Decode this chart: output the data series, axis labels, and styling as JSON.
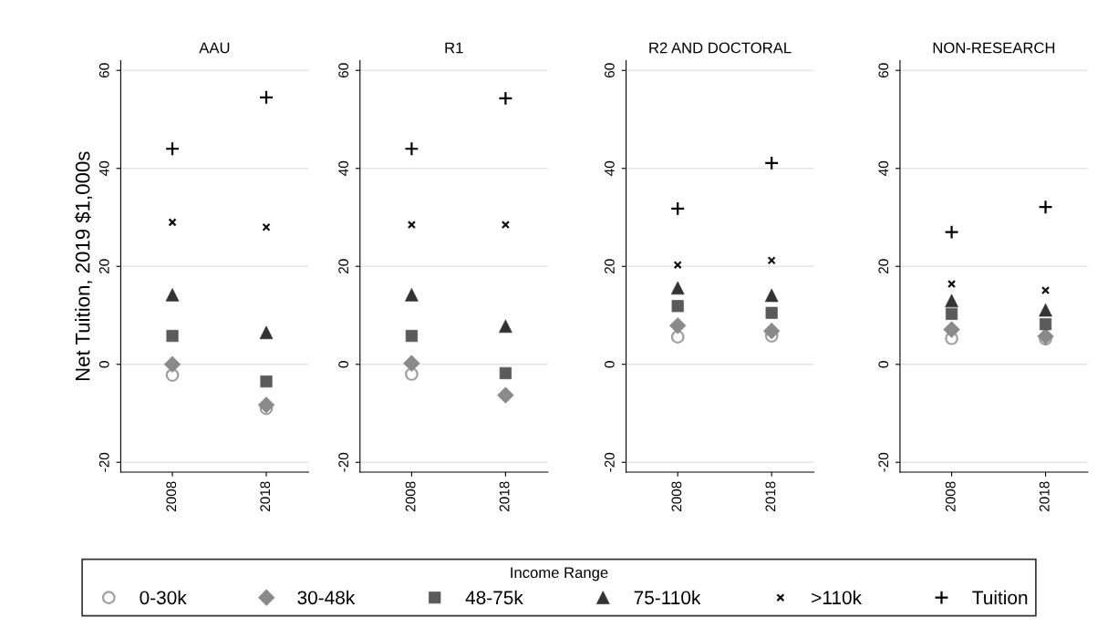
{
  "chart_data": [
    {
      "type": "scatter",
      "title": "AAU",
      "ylabel": "Net Tuition, 2019 $1,000s",
      "categories": [
        "2008",
        "2018"
      ],
      "ylim": [
        -22,
        62
      ],
      "yticks": [
        -20,
        0,
        20,
        40,
        60
      ],
      "grid": "y",
      "legend": "bottom",
      "legend_title": "Income Range",
      "series": [
        {
          "name": "0-30k",
          "color": "#a0a0a0",
          "marker": "circle",
          "values": [
            -2.2,
            -9
          ]
        },
        {
          "name": "30-48k",
          "color": "#8a8a8a",
          "marker": "diamond",
          "values": [
            0,
            -8.3
          ]
        },
        {
          "name": "48-75k",
          "color": "#5a5a5a",
          "marker": "square",
          "values": [
            5.8,
            -3.5
          ]
        },
        {
          "name": "75-110k",
          "color": "#333333",
          "marker": "triangle",
          "values": [
            14.2,
            6.5
          ]
        },
        {
          "name": ">110k",
          "color": "#111111",
          "marker": "x",
          "values": [
            29,
            28
          ]
        },
        {
          "name": "Tuition",
          "color": "#000000",
          "marker": "cross",
          "values": [
            44,
            54.5
          ]
        }
      ]
    },
    {
      "type": "scatter",
      "title": "R1",
      "categories": [
        "2008",
        "2018"
      ],
      "ylim": [
        -22,
        62
      ],
      "yticks": [
        -20,
        0,
        20,
        40,
        60
      ],
      "grid": "y",
      "series": [
        {
          "color": "#a0a0a0",
          "marker": "circle",
          "values": [
            -2,
            null
          ]
        },
        {
          "color": "#8a8a8a",
          "marker": "diamond",
          "values": [
            0.2,
            -6.3
          ]
        },
        {
          "color": "#5a5a5a",
          "marker": "square",
          "values": [
            5.8,
            -1.8
          ]
        },
        {
          "color": "#333333",
          "marker": "triangle",
          "values": [
            14.2,
            7.8
          ]
        },
        {
          "color": "#111111",
          "marker": "x",
          "values": [
            28.5,
            28.5
          ]
        },
        {
          "color": "#000000",
          "marker": "cross",
          "values": [
            44,
            54.3
          ]
        }
      ]
    },
    {
      "type": "scatter",
      "title": "R2 AND DOCTORAL",
      "categories": [
        "2008",
        "2018"
      ],
      "ylim": [
        -22,
        62
      ],
      "yticks": [
        -20,
        0,
        20,
        40,
        60
      ],
      "grid": "y",
      "series": [
        {
          "color": "#a0a0a0",
          "marker": "circle",
          "values": [
            5.6,
            5.8
          ]
        },
        {
          "color": "#8a8a8a",
          "marker": "diamond",
          "values": [
            7.9,
            6.8
          ]
        },
        {
          "color": "#5a5a5a",
          "marker": "square",
          "values": [
            11.9,
            10.5
          ]
        },
        {
          "color": "#333333",
          "marker": "triangle",
          "values": [
            15.6,
            14.1
          ]
        },
        {
          "color": "#111111",
          "marker": "x",
          "values": [
            20.3,
            21.2
          ]
        },
        {
          "color": "#000000",
          "marker": "cross",
          "values": [
            31.8,
            41.1
          ]
        }
      ]
    },
    {
      "type": "scatter",
      "title": "NON-RESEARCH",
      "categories": [
        "2008",
        "2018"
      ],
      "ylim": [
        -22,
        62
      ],
      "yticks": [
        -20,
        0,
        20,
        40,
        60
      ],
      "grid": "y",
      "series": [
        {
          "color": "#a0a0a0",
          "marker": "circle",
          "values": [
            5.3,
            5.2
          ]
        },
        {
          "color": "#8a8a8a",
          "marker": "diamond",
          "values": [
            7.1,
            5.7
          ]
        },
        {
          "color": "#5a5a5a",
          "marker": "square",
          "values": [
            10.3,
            8.2
          ]
        },
        {
          "color": "#333333",
          "marker": "triangle",
          "values": [
            13,
            11.1
          ]
        },
        {
          "color": "#111111",
          "marker": "x",
          "values": [
            16.4,
            15.1
          ]
        },
        {
          "color": "#000000",
          "marker": "cross",
          "values": [
            27,
            32.1
          ]
        }
      ]
    }
  ]
}
